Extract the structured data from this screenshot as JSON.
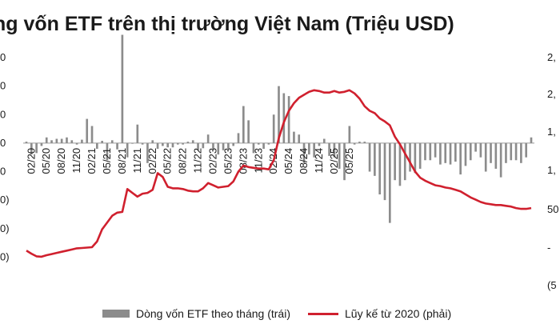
{
  "title": "ng vốn ETF trên thị trường Việt Nam (Triệu USD)",
  "colors": {
    "bar": "#8c8c8c",
    "line": "#d0202e",
    "axis": "#333333"
  },
  "legend": {
    "bar_label": "Dòng vốn ETF theo tháng (trái)",
    "line_label": "Lũy kế từ 2020 (phải)"
  },
  "chart_data": {
    "type": "bar+line",
    "title": "",
    "x_tick_labels": [
      "02/20",
      "05/20",
      "08/20",
      "11/20",
      "02/21",
      "05/21",
      "08/21",
      "11/21",
      "02/22",
      "05/22",
      "08/22",
      "11/22",
      "02/23",
      "05/23",
      "08/23",
      "11/23",
      "02/24",
      "05/24",
      "08/24",
      "11/24",
      "02/25",
      "05/25"
    ],
    "left_axis_labels": [
      "0",
      "0",
      "0",
      "0",
      "0",
      "0)",
      "0)",
      "0)"
    ],
    "right_axis_labels": [
      "2,",
      "2,",
      "1,",
      "1,",
      "50",
      "-",
      "(5"
    ],
    "left_axis": {
      "ylim": [
        -500,
        300
      ],
      "ticks": [
        300,
        200,
        100,
        0,
        -100,
        -200,
        -300,
        -400
      ]
    },
    "right_axis": {
      "ylim": [
        -500,
        2500
      ]
    },
    "months_start": "01/2020",
    "series": [
      {
        "name": "Dòng vốn ETF theo tháng (trái)",
        "type": "bar",
        "values": [
          5,
          -40,
          -35,
          -10,
          20,
          10,
          15,
          15,
          20,
          10,
          -5,
          12,
          85,
          60,
          -20,
          8,
          -60,
          10,
          -22,
          380,
          -50,
          -2,
          65,
          -5,
          -70,
          10,
          -20,
          -10,
          -15,
          -15,
          -5,
          -5,
          5,
          10,
          -25,
          -18,
          30,
          -22,
          -40,
          -25,
          -20,
          -10,
          35,
          130,
          80,
          -35,
          -5,
          -20,
          -5,
          100,
          200,
          175,
          165,
          40,
          30,
          -70,
          -40,
          -50,
          -10,
          15,
          -45,
          -50,
          -90,
          -130,
          60,
          -5,
          5,
          5,
          -100,
          -115,
          -180,
          -200,
          -280,
          -130,
          -150,
          -130,
          -100,
          -105,
          -90,
          -60,
          -60,
          -50,
          -75,
          -70,
          -75,
          -65,
          -110,
          -80,
          -60,
          -30,
          -50,
          -100,
          -70,
          -90,
          -120,
          -70,
          -60,
          -60,
          -70,
          -50,
          20
        ]
      },
      {
        "name": "Lũy kế từ 2020 (phải)",
        "type": "line",
        "values": [
          -40,
          -80,
          -115,
          -120,
          -100,
          -85,
          -70,
          -55,
          -40,
          -25,
          -10,
          -5,
          0,
          5,
          80,
          240,
          330,
          420,
          460,
          470,
          770,
          720,
          670,
          710,
          720,
          760,
          980,
          930,
          800,
          780,
          780,
          770,
          750,
          740,
          740,
          780,
          850,
          820,
          790,
          800,
          810,
          870,
          1000,
          1080,
          1060,
          1050,
          1040,
          1040,
          1030,
          1150,
          1440,
          1650,
          1800,
          1900,
          1970,
          2010,
          2050,
          2070,
          2060,
          2040,
          2040,
          2060,
          2040,
          2050,
          2070,
          2030,
          1960,
          1860,
          1800,
          1770,
          1700,
          1660,
          1610,
          1460,
          1360,
          1240,
          1120,
          1000,
          920,
          880,
          850,
          820,
          810,
          790,
          780,
          760,
          740,
          700,
          660,
          630,
          600,
          580,
          570,
          560,
          560,
          550,
          540,
          520,
          510,
          510,
          520
        ]
      }
    ]
  }
}
